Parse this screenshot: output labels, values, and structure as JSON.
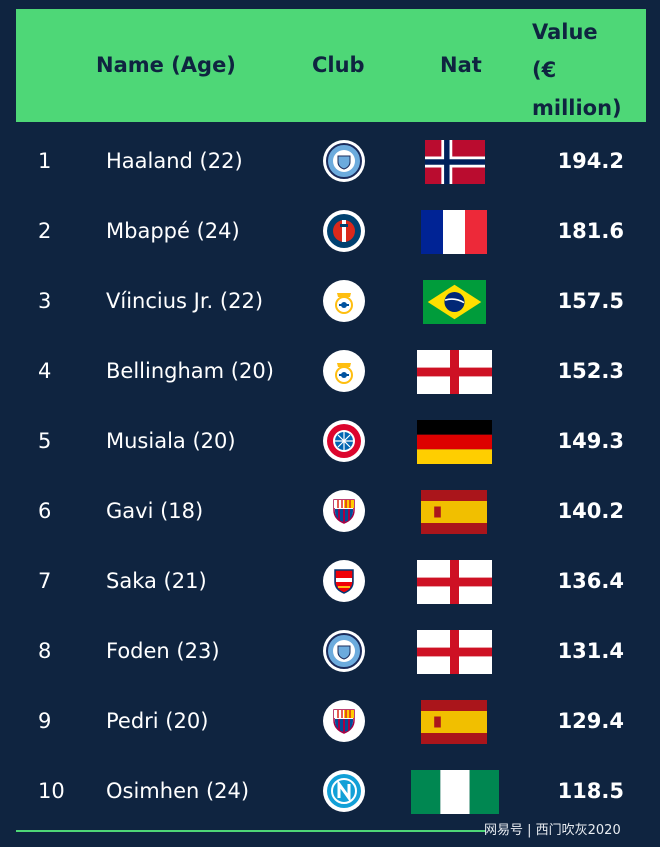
{
  "header": {
    "name_label": "Name (Age)",
    "club_label": "Club",
    "nat_label": "Nat",
    "value_label": "Value\n(€\nmillion)"
  },
  "rows": [
    {
      "rank": "1",
      "name": "Haaland (22)",
      "club_icon": "man-city-crest",
      "flag_icon": "norway-flag",
      "value": "194.2"
    },
    {
      "rank": "2",
      "name": "Mbappé (24)",
      "club_icon": "psg-crest",
      "flag_icon": "france-flag",
      "value": "181.6"
    },
    {
      "rank": "3",
      "name": "Víincius Jr. (22)",
      "club_icon": "real-madrid-crest",
      "flag_icon": "brazil-flag",
      "value": "157.5"
    },
    {
      "rank": "4",
      "name": "Bellingham (20)",
      "club_icon": "real-madrid-crest",
      "flag_icon": "england-flag",
      "value": "152.3"
    },
    {
      "rank": "5",
      "name": "Musiala (20)",
      "club_icon": "bayern-crest",
      "flag_icon": "germany-flag",
      "value": "149.3"
    },
    {
      "rank": "6",
      "name": "Gavi (18)",
      "club_icon": "barcelona-crest",
      "flag_icon": "spain-flag",
      "value": "140.2"
    },
    {
      "rank": "7",
      "name": "Saka (21)",
      "club_icon": "arsenal-crest",
      "flag_icon": "england-flag",
      "value": "136.4"
    },
    {
      "rank": "8",
      "name": "Foden (23)",
      "club_icon": "man-city-crest",
      "flag_icon": "england-flag",
      "value": "131.4"
    },
    {
      "rank": "9",
      "name": "Pedri (20)",
      "club_icon": "barcelona-crest",
      "flag_icon": "spain-flag",
      "value": "129.4"
    },
    {
      "rank": "10",
      "name": "Osimhen (24)",
      "club_icon": "napoli-crest",
      "flag_icon": "nigeria-flag",
      "value": "118.5"
    }
  ],
  "colors": {
    "background": "#0f2440",
    "header": "#4ed777",
    "text": "#ffffff"
  },
  "watermark": "网易号 | 西门吹灰2020"
}
